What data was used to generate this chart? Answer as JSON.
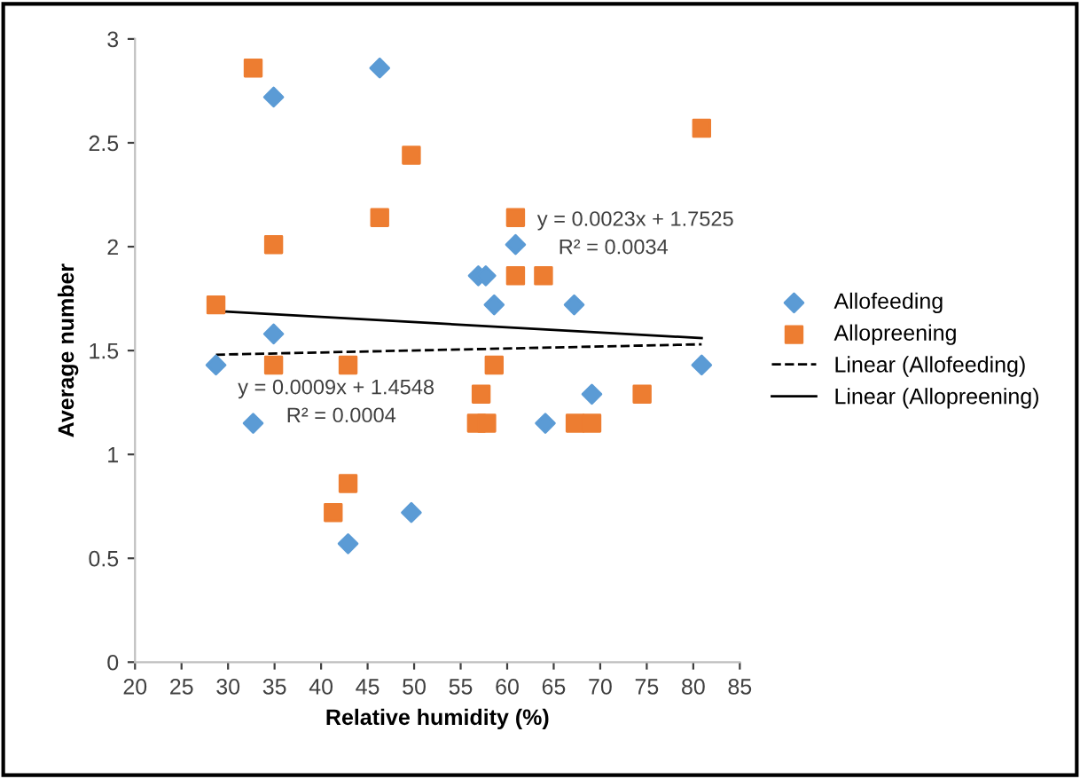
{
  "chart_data": {
    "type": "scatter",
    "xlabel": "Relative humidity (%)",
    "ylabel": "Average number",
    "xlim": [
      20,
      85
    ],
    "xticks": [
      20,
      25,
      30,
      35,
      40,
      45,
      50,
      55,
      60,
      65,
      70,
      75,
      80,
      85
    ],
    "ylim": [
      0,
      3
    ],
    "yticks": [
      0,
      {
        "value": 0.5,
        "label": "0.5"
      },
      1,
      {
        "value": 1.5,
        "label": "1.5"
      },
      2,
      {
        "value": 2.5,
        "label": "2.5"
      },
      3
    ],
    "grid": false,
    "legend": "right",
    "series": [
      {
        "name": "Allofeeding",
        "marker": "diamond",
        "color": "#5b9bd5",
        "x": [
          28.7,
          34.9,
          32.7,
          42.9,
          49.7,
          64.1,
          69.1,
          80.9,
          34.9,
          46.3,
          56.9,
          57.7,
          58.6,
          60.9,
          67.2
        ],
        "values": [
          1.43,
          1.58,
          1.15,
          0.57,
          0.72,
          1.15,
          1.29,
          1.43,
          2.72,
          2.86,
          1.86,
          1.86,
          1.72,
          2.01,
          1.72
        ]
      },
      {
        "name": "Allopreening",
        "marker": "square",
        "color": "#ed7d31",
        "x": [
          28.7,
          32.7,
          34.9,
          46.3,
          49.7,
          60.9,
          60.9,
          63.9,
          80.9,
          34.9,
          42.9,
          58.6,
          57.2,
          56.7,
          57.8,
          42.9,
          41.3,
          67.3,
          69.1,
          74.5
        ],
        "values": [
          1.72,
          2.86,
          2.01,
          2.14,
          2.44,
          2.14,
          1.86,
          1.86,
          2.57,
          1.43,
          1.43,
          1.43,
          1.29,
          1.15,
          1.15,
          0.86,
          0.72,
          1.15,
          1.15,
          1.29
        ]
      },
      {
        "name": "Linear (Allofeeding)",
        "type": "line",
        "line_style": "dashed",
        "marker": "none",
        "color": "#000000",
        "x": [
          28.7,
          80.9
        ],
        "values": [
          1.48,
          1.53
        ]
      },
      {
        "name": "Linear (Allopreening)",
        "type": "line",
        "line_style": "solid",
        "marker": "none",
        "color": "#000000",
        "x": [
          28.7,
          80.9
        ],
        "values": [
          1.69,
          1.56
        ]
      }
    ],
    "annotations": [
      "y = 0.0009x + 1.4548",
      "R² = 0.0004",
      "y = 0.0023x + 1.7525",
      "R² = 0.0034"
    ]
  }
}
